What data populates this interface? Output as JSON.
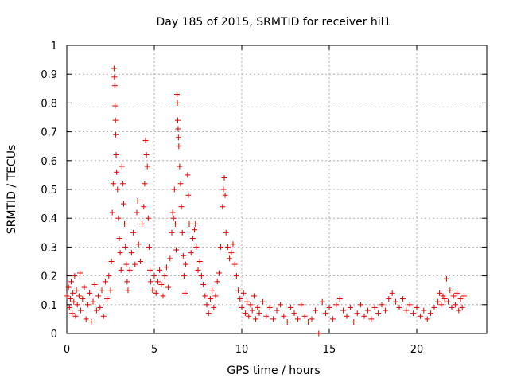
{
  "chart_data": {
    "type": "scatter",
    "title": "Day 185 of 2015, SRMTID for receiver hil1",
    "xlabel": "GPS time / hours",
    "ylabel": "SRMTID / TECUs",
    "xlim": [
      0,
      24
    ],
    "ylim": [
      0,
      1
    ],
    "xticks": [
      "0",
      "5",
      "10",
      "15",
      "20"
    ],
    "yticks": [
      "0",
      "0.1",
      "0.2",
      "0.3",
      "0.4",
      "0.5",
      "0.6",
      "0.7",
      "0.8",
      "0.9",
      "1"
    ],
    "grid": true,
    "marker": "+",
    "color": "#e00000",
    "series": [
      {
        "name": "SRMTID",
        "points": [
          [
            0.0,
            0.13
          ],
          [
            0.1,
            0.16
          ],
          [
            0.15,
            0.09
          ],
          [
            0.2,
            0.12
          ],
          [
            0.25,
            0.18
          ],
          [
            0.3,
            0.07
          ],
          [
            0.35,
            0.14
          ],
          [
            0.4,
            0.11
          ],
          [
            0.45,
            0.2
          ],
          [
            0.5,
            0.06
          ],
          [
            0.55,
            0.15
          ],
          [
            0.6,
            0.1
          ],
          [
            0.7,
            0.13
          ],
          [
            0.75,
            0.21
          ],
          [
            0.8,
            0.08
          ],
          [
            0.9,
            0.12
          ],
          [
            1.0,
            0.16
          ],
          [
            1.1,
            0.05
          ],
          [
            1.2,
            0.1
          ],
          [
            1.3,
            0.14
          ],
          [
            1.4,
            0.04
          ],
          [
            1.5,
            0.11
          ],
          [
            1.6,
            0.17
          ],
          [
            1.7,
            0.08
          ],
          [
            1.8,
            0.13
          ],
          [
            1.9,
            0.09
          ],
          [
            2.0,
            0.15
          ],
          [
            2.1,
            0.06
          ],
          [
            2.2,
            0.18
          ],
          [
            2.3,
            0.12
          ],
          [
            2.4,
            0.2
          ],
          [
            2.5,
            0.15
          ],
          [
            2.55,
            0.25
          ],
          [
            2.6,
            0.42
          ],
          [
            2.65,
            0.52
          ],
          [
            2.7,
            0.92
          ],
          [
            2.72,
            0.89
          ],
          [
            2.74,
            0.86
          ],
          [
            2.76,
            0.79
          ],
          [
            2.78,
            0.74
          ],
          [
            2.8,
            0.69
          ],
          [
            2.82,
            0.62
          ],
          [
            2.85,
            0.56
          ],
          [
            2.9,
            0.5
          ],
          [
            2.95,
            0.4
          ],
          [
            3.0,
            0.33
          ],
          [
            3.05,
            0.28
          ],
          [
            3.1,
            0.22
          ],
          [
            3.15,
            0.58
          ],
          [
            3.2,
            0.52
          ],
          [
            3.25,
            0.45
          ],
          [
            3.3,
            0.38
          ],
          [
            3.35,
            0.3
          ],
          [
            3.4,
            0.24
          ],
          [
            3.45,
            0.18
          ],
          [
            3.5,
            0.15
          ],
          [
            3.6,
            0.22
          ],
          [
            3.7,
            0.28
          ],
          [
            3.8,
            0.35
          ],
          [
            3.9,
            0.24
          ],
          [
            4.0,
            0.42
          ],
          [
            4.05,
            0.46
          ],
          [
            4.1,
            0.31
          ],
          [
            4.2,
            0.25
          ],
          [
            4.3,
            0.38
          ],
          [
            4.4,
            0.44
          ],
          [
            4.45,
            0.52
          ],
          [
            4.5,
            0.67
          ],
          [
            4.55,
            0.62
          ],
          [
            4.6,
            0.58
          ],
          [
            4.65,
            0.4
          ],
          [
            4.7,
            0.3
          ],
          [
            4.75,
            0.22
          ],
          [
            4.8,
            0.18
          ],
          [
            4.9,
            0.15
          ],
          [
            5.0,
            0.2
          ],
          [
            5.1,
            0.14
          ],
          [
            5.2,
            0.18
          ],
          [
            5.3,
            0.22
          ],
          [
            5.4,
            0.17
          ],
          [
            5.5,
            0.13
          ],
          [
            5.6,
            0.2
          ],
          [
            5.7,
            0.23
          ],
          [
            5.8,
            0.16
          ],
          [
            5.9,
            0.26
          ],
          [
            6.0,
            0.35
          ],
          [
            6.05,
            0.42
          ],
          [
            6.1,
            0.4
          ],
          [
            6.15,
            0.5
          ],
          [
            6.2,
            0.38
          ],
          [
            6.25,
            0.29
          ],
          [
            6.3,
            0.83
          ],
          [
            6.32,
            0.8
          ],
          [
            6.34,
            0.74
          ],
          [
            6.36,
            0.71
          ],
          [
            6.38,
            0.68
          ],
          [
            6.4,
            0.65
          ],
          [
            6.45,
            0.58
          ],
          [
            6.5,
            0.52
          ],
          [
            6.55,
            0.44
          ],
          [
            6.6,
            0.35
          ],
          [
            6.65,
            0.27
          ],
          [
            6.7,
            0.2
          ],
          [
            6.75,
            0.14
          ],
          [
            6.8,
            0.24
          ],
          [
            6.9,
            0.55
          ],
          [
            6.95,
            0.48
          ],
          [
            7.0,
            0.38
          ],
          [
            7.1,
            0.28
          ],
          [
            7.2,
            0.33
          ],
          [
            7.3,
            0.36
          ],
          [
            7.35,
            0.38
          ],
          [
            7.4,
            0.3
          ],
          [
            7.5,
            0.22
          ],
          [
            7.6,
            0.25
          ],
          [
            7.7,
            0.2
          ],
          [
            7.8,
            0.17
          ],
          [
            7.9,
            0.13
          ],
          [
            8.0,
            0.1
          ],
          [
            8.1,
            0.07
          ],
          [
            8.2,
            0.12
          ],
          [
            8.3,
            0.15
          ],
          [
            8.4,
            0.09
          ],
          [
            8.5,
            0.13
          ],
          [
            8.6,
            0.18
          ],
          [
            8.7,
            0.21
          ],
          [
            8.8,
            0.3
          ],
          [
            8.9,
            0.44
          ],
          [
            8.95,
            0.5
          ],
          [
            9.0,
            0.54
          ],
          [
            9.05,
            0.48
          ],
          [
            9.1,
            0.35
          ],
          [
            9.2,
            0.3
          ],
          [
            9.3,
            0.26
          ],
          [
            9.4,
            0.28
          ],
          [
            9.5,
            0.31
          ],
          [
            9.6,
            0.24
          ],
          [
            9.7,
            0.2
          ],
          [
            9.8,
            0.15
          ],
          [
            9.9,
            0.12
          ],
          [
            10.0,
            0.09
          ],
          [
            10.1,
            0.14
          ],
          [
            10.2,
            0.07
          ],
          [
            10.3,
            0.11
          ],
          [
            10.4,
            0.06
          ],
          [
            10.5,
            0.1
          ],
          [
            10.6,
            0.08
          ],
          [
            10.7,
            0.13
          ],
          [
            10.8,
            0.05
          ],
          [
            10.9,
            0.09
          ],
          [
            11.0,
            0.07
          ],
          [
            11.2,
            0.11
          ],
          [
            11.4,
            0.06
          ],
          [
            11.6,
            0.09
          ],
          [
            11.8,
            0.05
          ],
          [
            12.0,
            0.08
          ],
          [
            12.2,
            0.1
          ],
          [
            12.4,
            0.06
          ],
          [
            12.6,
            0.04
          ],
          [
            12.8,
            0.09
          ],
          [
            13.0,
            0.07
          ],
          [
            13.2,
            0.05
          ],
          [
            13.4,
            0.1
          ],
          [
            13.6,
            0.06
          ],
          [
            13.8,
            0.04
          ],
          [
            14.0,
            0.05
          ],
          [
            14.2,
            0.08
          ],
          [
            14.4,
            0.0
          ],
          [
            14.6,
            0.11
          ],
          [
            14.8,
            0.07
          ],
          [
            15.0,
            0.09
          ],
          [
            15.2,
            0.05
          ],
          [
            15.4,
            0.1
          ],
          [
            15.6,
            0.12
          ],
          [
            15.8,
            0.08
          ],
          [
            16.0,
            0.06
          ],
          [
            16.2,
            0.09
          ],
          [
            16.4,
            0.04
          ],
          [
            16.6,
            0.07
          ],
          [
            16.8,
            0.1
          ],
          [
            17.0,
            0.06
          ],
          [
            17.2,
            0.08
          ],
          [
            17.4,
            0.05
          ],
          [
            17.6,
            0.09
          ],
          [
            17.8,
            0.07
          ],
          [
            18.0,
            0.1
          ],
          [
            18.2,
            0.08
          ],
          [
            18.4,
            0.12
          ],
          [
            18.6,
            0.14
          ],
          [
            18.8,
            0.11
          ],
          [
            19.0,
            0.09
          ],
          [
            19.2,
            0.12
          ],
          [
            19.4,
            0.08
          ],
          [
            19.6,
            0.1
          ],
          [
            19.8,
            0.07
          ],
          [
            20.0,
            0.09
          ],
          [
            20.2,
            0.06
          ],
          [
            20.4,
            0.08
          ],
          [
            20.6,
            0.05
          ],
          [
            20.8,
            0.07
          ],
          [
            21.0,
            0.09
          ],
          [
            21.2,
            0.11
          ],
          [
            21.3,
            0.14
          ],
          [
            21.4,
            0.1
          ],
          [
            21.5,
            0.13
          ],
          [
            21.6,
            0.12
          ],
          [
            21.7,
            0.19
          ],
          [
            21.8,
            0.11
          ],
          [
            21.9,
            0.15
          ],
          [
            22.0,
            0.09
          ],
          [
            22.1,
            0.13
          ],
          [
            22.2,
            0.1
          ],
          [
            22.3,
            0.14
          ],
          [
            22.4,
            0.08
          ],
          [
            22.5,
            0.12
          ],
          [
            22.6,
            0.09
          ],
          [
            22.7,
            0.13
          ]
        ]
      }
    ]
  }
}
